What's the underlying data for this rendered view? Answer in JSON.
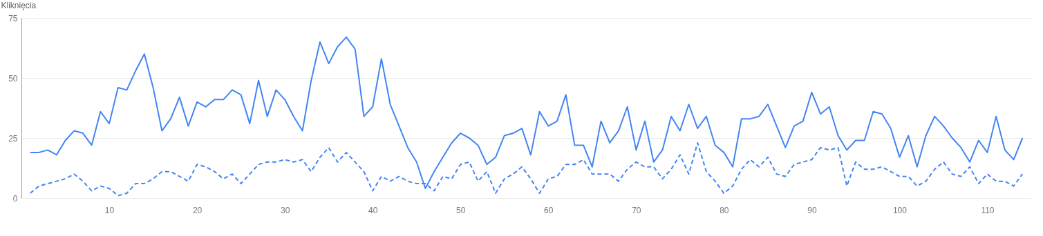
{
  "chart_data": {
    "type": "line",
    "ylabel": "Kliknięcia",
    "x": [
      1,
      2,
      3,
      4,
      5,
      6,
      7,
      8,
      9,
      10,
      11,
      12,
      13,
      14,
      15,
      16,
      17,
      18,
      19,
      20,
      21,
      22,
      23,
      24,
      25,
      26,
      27,
      28,
      29,
      30,
      31,
      32,
      33,
      34,
      35,
      36,
      37,
      38,
      39,
      40,
      41,
      42,
      43,
      44,
      45,
      46,
      47,
      48,
      49,
      50,
      51,
      52,
      53,
      54,
      55,
      56,
      57,
      58,
      59,
      60,
      61,
      62,
      63,
      64,
      65,
      66,
      67,
      68,
      69,
      70,
      71,
      72,
      73,
      74,
      75,
      76,
      77,
      78,
      79,
      80,
      81,
      82,
      83,
      84,
      85,
      86,
      87,
      88,
      89,
      90,
      91,
      92,
      93,
      94,
      95,
      96,
      97,
      98,
      99,
      100,
      101,
      102,
      103,
      104,
      105,
      106,
      107,
      108,
      109,
      110,
      111,
      112,
      113,
      114
    ],
    "xlim": [
      0,
      115
    ],
    "xticks": [
      10,
      20,
      30,
      40,
      50,
      60,
      70,
      80,
      90,
      100,
      110
    ],
    "ylim": [
      0,
      75
    ],
    "yticks": [
      0,
      25,
      50,
      75
    ],
    "grid": "y",
    "marker": "none",
    "series": [
      {
        "color": "#4285f4",
        "line_style": "solid",
        "values": [
          19,
          19,
          20,
          18,
          24,
          28,
          27,
          22,
          36,
          31,
          46,
          45,
          53,
          60,
          46,
          28,
          33,
          42,
          30,
          40,
          38,
          41,
          41,
          45,
          43,
          31,
          49,
          34,
          45,
          41,
          34,
          28,
          49,
          65,
          56,
          63,
          67,
          62,
          34,
          38,
          58,
          39,
          30,
          21,
          15,
          4,
          11,
          17,
          23,
          27,
          25,
          22,
          14,
          17,
          26,
          27,
          29,
          18,
          36,
          30,
          32,
          43,
          22,
          22,
          13,
          32,
          23,
          28,
          38,
          20,
          32,
          15,
          20,
          34,
          28,
          39,
          29,
          34,
          22,
          19,
          13,
          33,
          33,
          34,
          39,
          30,
          21,
          30,
          32,
          44,
          35,
          38,
          26,
          20,
          24,
          24,
          36,
          35,
          29,
          17,
          26,
          13,
          26,
          34,
          30,
          25,
          21,
          15,
          24,
          19,
          34,
          20,
          16,
          25
        ]
      },
      {
        "color": "#4285f4",
        "line_style": "dashed",
        "values": [
          2,
          5,
          6,
          7,
          8,
          10,
          7,
          3,
          5,
          4,
          1,
          2,
          6,
          6,
          8,
          11,
          11,
          9,
          7,
          14,
          13,
          11,
          8,
          10,
          6,
          10,
          14,
          15,
          15,
          16,
          15,
          16,
          11,
          17,
          21,
          15,
          19,
          15,
          11,
          3,
          9,
          7,
          9,
          7,
          6,
          6,
          3,
          9,
          8,
          14,
          15,
          7,
          11,
          2,
          8,
          10,
          13,
          8,
          2,
          8,
          9,
          14,
          14,
          16,
          10,
          10,
          10,
          7,
          12,
          15,
          13,
          13,
          8,
          12,
          18,
          10,
          23,
          11,
          7,
          2,
          5,
          12,
          16,
          13,
          17,
          10,
          9,
          14,
          15,
          16,
          21,
          20,
          21,
          5,
          15,
          12,
          12,
          13,
          11,
          9,
          9,
          5,
          7,
          12,
          15,
          10,
          9,
          13,
          6,
          10,
          7,
          7,
          5,
          10
        ]
      }
    ]
  }
}
